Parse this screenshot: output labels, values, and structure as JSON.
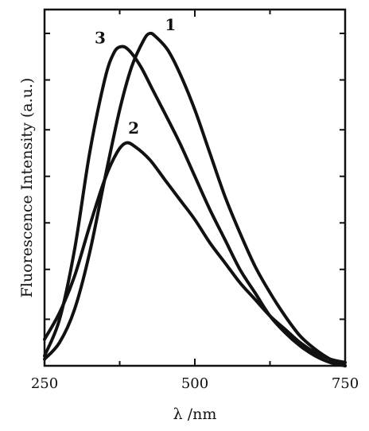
{
  "chart_data": {
    "type": "line",
    "xlabel": "λ /nm",
    "ylabel": "Fluorescence Intensity (a.u.)",
    "xlim": [
      250,
      750
    ],
    "ylim": [
      0,
      1
    ],
    "x_ticks": [
      250,
      500,
      750
    ],
    "x_minor_ticks": [
      250,
      375,
      500,
      625,
      750
    ],
    "y_tick_values": [
      0.14,
      0.29,
      0.43,
      0.57,
      0.71,
      0.86,
      1.0
    ],
    "grid": false,
    "legend": "none",
    "line_color": "#111111",
    "series": [
      {
        "name": "1",
        "x": [
          250,
          275,
          300,
          325,
          350,
          375,
          395,
          415,
          425,
          435,
          455,
          475,
          500,
          525,
          550,
          575,
          600,
          625,
          650,
          675,
          700,
          725,
          750
        ],
        "y": [
          0.02,
          0.07,
          0.17,
          0.34,
          0.56,
          0.77,
          0.9,
          0.98,
          1.0,
          0.99,
          0.95,
          0.88,
          0.77,
          0.64,
          0.51,
          0.4,
          0.3,
          0.22,
          0.15,
          0.09,
          0.05,
          0.02,
          0.0
        ]
      },
      {
        "name": "2",
        "x": [
          250,
          275,
          300,
          325,
          350,
          370,
          385,
          400,
          425,
          450,
          475,
          500,
          525,
          550,
          575,
          600,
          625,
          650,
          675,
          700,
          725,
          750
        ],
        "y": [
          0.08,
          0.16,
          0.27,
          0.42,
          0.56,
          0.64,
          0.67,
          0.66,
          0.62,
          0.56,
          0.5,
          0.44,
          0.37,
          0.31,
          0.25,
          0.2,
          0.15,
          0.11,
          0.07,
          0.04,
          0.02,
          0.01
        ]
      },
      {
        "name": "3",
        "x": [
          250,
          275,
          300,
          325,
          350,
          365,
          377,
          390,
          410,
          430,
          450,
          475,
          500,
          525,
          550,
          575,
          600,
          625,
          650,
          675,
          700,
          725,
          750
        ],
        "y": [
          0.03,
          0.14,
          0.35,
          0.64,
          0.86,
          0.94,
          0.96,
          0.95,
          0.9,
          0.83,
          0.76,
          0.67,
          0.57,
          0.47,
          0.38,
          0.29,
          0.22,
          0.15,
          0.1,
          0.06,
          0.03,
          0.01,
          0.0
        ]
      }
    ]
  }
}
